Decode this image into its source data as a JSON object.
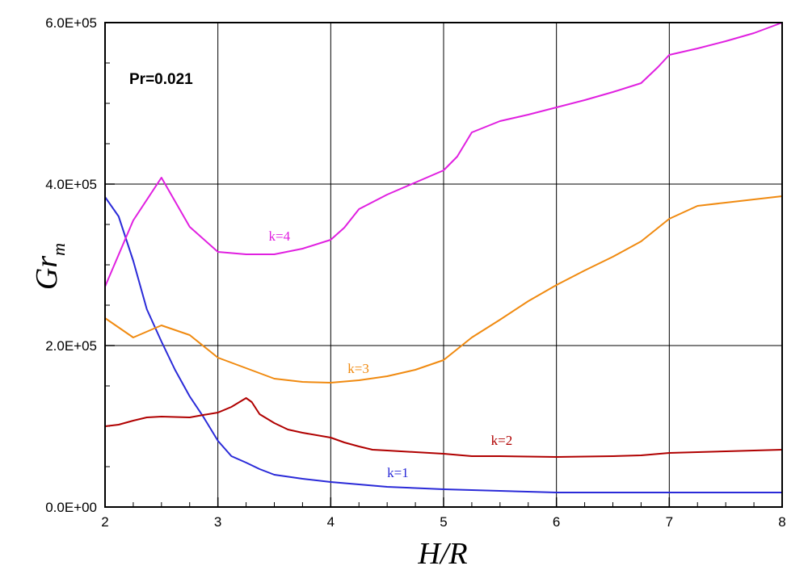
{
  "chart_data": {
    "type": "line",
    "xlabel": "H/R",
    "ylabel": {
      "base": "Gr",
      "subscript": "m"
    },
    "annotation": "Pr=0.021",
    "xlim": [
      2,
      8
    ],
    "ylim": [
      0,
      600000
    ],
    "x_ticks": [
      2,
      3,
      4,
      5,
      6,
      7,
      8
    ],
    "x_tick_labels": [
      "2",
      "3",
      "4",
      "5",
      "6",
      "7",
      "8"
    ],
    "y_ticks": [
      0,
      200000,
      400000,
      600000
    ],
    "y_tick_labels": [
      "0.0E+00",
      "2.0E+05",
      "4.0E+05",
      "6.0E+05"
    ],
    "y_minor_step": 50000,
    "x_minor_step": 0.25,
    "grid": true,
    "series": [
      {
        "name": "k=1",
        "color": "#2a2ad8",
        "label_at": [
          4.5,
          37000
        ],
        "points": [
          [
            2.0,
            384000
          ],
          [
            2.12,
            360000
          ],
          [
            2.25,
            305000
          ],
          [
            2.37,
            245000
          ],
          [
            2.5,
            205000
          ],
          [
            2.62,
            170000
          ],
          [
            2.75,
            137000
          ],
          [
            2.87,
            112000
          ],
          [
            3.0,
            82000
          ],
          [
            3.12,
            63000
          ],
          [
            3.25,
            55000
          ],
          [
            3.37,
            47000
          ],
          [
            3.5,
            40000
          ],
          [
            3.75,
            35000
          ],
          [
            4.0,
            31000
          ],
          [
            4.25,
            28000
          ],
          [
            4.5,
            25000
          ],
          [
            5.0,
            22000
          ],
          [
            5.5,
            20000
          ],
          [
            6.0,
            18000
          ],
          [
            6.5,
            18000
          ],
          [
            7.0,
            18000
          ],
          [
            8.0,
            18000
          ]
        ]
      },
      {
        "name": "k=2",
        "color": "#b00000",
        "label_at": [
          5.42,
          77000
        ],
        "points": [
          [
            2.0,
            100000
          ],
          [
            2.12,
            102000
          ],
          [
            2.25,
            107000
          ],
          [
            2.37,
            111000
          ],
          [
            2.5,
            112000
          ],
          [
            2.75,
            111000
          ],
          [
            2.87,
            114000
          ],
          [
            3.0,
            117000
          ],
          [
            3.12,
            124000
          ],
          [
            3.25,
            135000
          ],
          [
            3.3,
            130000
          ],
          [
            3.37,
            115000
          ],
          [
            3.5,
            104000
          ],
          [
            3.62,
            96000
          ],
          [
            3.75,
            92000
          ],
          [
            4.0,
            86000
          ],
          [
            4.12,
            80000
          ],
          [
            4.25,
            75000
          ],
          [
            4.37,
            71000
          ],
          [
            4.5,
            70000
          ],
          [
            4.75,
            68000
          ],
          [
            5.0,
            66000
          ],
          [
            5.25,
            63000
          ],
          [
            5.5,
            63000
          ],
          [
            6.0,
            62000
          ],
          [
            6.5,
            63000
          ],
          [
            6.75,
            64000
          ],
          [
            7.0,
            67000
          ],
          [
            7.5,
            69000
          ],
          [
            8.0,
            71000
          ]
        ]
      },
      {
        "name": "k=3",
        "color": "#f08a10",
        "label_at": [
          4.15,
          166000
        ],
        "points": [
          [
            2.0,
            234000
          ],
          [
            2.25,
            210000
          ],
          [
            2.5,
            225000
          ],
          [
            2.75,
            213000
          ],
          [
            3.0,
            185000
          ],
          [
            3.25,
            172000
          ],
          [
            3.5,
            159000
          ],
          [
            3.75,
            155000
          ],
          [
            4.0,
            154000
          ],
          [
            4.25,
            157000
          ],
          [
            4.5,
            162000
          ],
          [
            4.75,
            170000
          ],
          [
            5.0,
            182000
          ],
          [
            5.25,
            210000
          ],
          [
            5.5,
            232000
          ],
          [
            5.75,
            255000
          ],
          [
            6.0,
            275000
          ],
          [
            6.25,
            293000
          ],
          [
            6.5,
            310000
          ],
          [
            6.75,
            329000
          ],
          [
            7.0,
            357000
          ],
          [
            7.25,
            373000
          ],
          [
            7.5,
            377000
          ],
          [
            8.0,
            385000
          ]
        ]
      },
      {
        "name": "k=4",
        "color": "#e020e0",
        "label_at": [
          3.45,
          330000
        ],
        "points": [
          [
            2.0,
            273000
          ],
          [
            2.25,
            355000
          ],
          [
            2.5,
            408000
          ],
          [
            2.75,
            347000
          ],
          [
            3.0,
            316000
          ],
          [
            3.25,
            313000
          ],
          [
            3.5,
            313000
          ],
          [
            3.75,
            320000
          ],
          [
            4.0,
            331000
          ],
          [
            4.12,
            346000
          ],
          [
            4.25,
            369000
          ],
          [
            4.5,
            387000
          ],
          [
            4.75,
            402000
          ],
          [
            5.0,
            417000
          ],
          [
            5.12,
            434000
          ],
          [
            5.25,
            464000
          ],
          [
            5.5,
            478000
          ],
          [
            5.75,
            486000
          ],
          [
            6.0,
            495000
          ],
          [
            6.25,
            504000
          ],
          [
            6.5,
            514000
          ],
          [
            6.75,
            525000
          ],
          [
            6.9,
            545000
          ],
          [
            7.0,
            560000
          ],
          [
            7.25,
            568000
          ],
          [
            7.5,
            577000
          ],
          [
            7.75,
            587000
          ],
          [
            8.0,
            600000
          ]
        ]
      }
    ]
  }
}
